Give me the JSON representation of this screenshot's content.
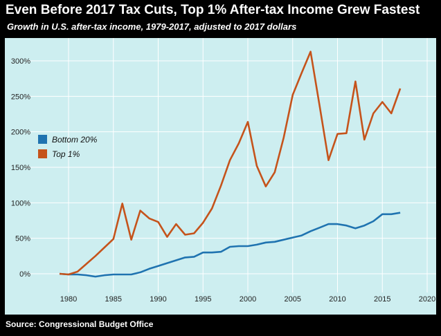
{
  "title": "Even Before 2017 Tax Cuts, Top 1% After-tax Income Grew Fastest",
  "subtitle": "Growth in U.S. after-tax income, 1979-2017, adjusted to 2017 dollars",
  "source": "Source: Congressional Budget Office",
  "colors": {
    "background": "#cdeef0",
    "grid": "#ffffff",
    "bottom20": "#1f73b0",
    "top1": "#c5531b"
  },
  "chart_data": {
    "type": "line",
    "title": "Even Before 2017 Tax Cuts, Top 1% After-tax Income Grew Fastest",
    "subtitle": "Growth in U.S. after-tax income, 1979-2017, adjusted to 2017 dollars",
    "xlabel": "",
    "ylabel": "",
    "xlim": [
      1975,
      2020
    ],
    "ylim": [
      -5,
      330
    ],
    "x_ticks": [
      1980,
      1985,
      1990,
      1995,
      2000,
      2005,
      2010,
      2015,
      2020
    ],
    "y_ticks": [
      0,
      50,
      100,
      150,
      200,
      250,
      300
    ],
    "y_tick_labels": [
      "0%",
      "50%",
      "100%",
      "150%",
      "200%",
      "250%",
      "300%"
    ],
    "grid": true,
    "legend_position": "left",
    "x": [
      1979,
      1980,
      1981,
      1982,
      1983,
      1984,
      1985,
      1986,
      1987,
      1988,
      1989,
      1990,
      1991,
      1992,
      1993,
      1994,
      1995,
      1996,
      1997,
      1998,
      1999,
      2000,
      2001,
      2002,
      2003,
      2004,
      2005,
      2006,
      2007,
      2008,
      2009,
      2010,
      2011,
      2012,
      2013,
      2014,
      2015,
      2016,
      2017
    ],
    "series": [
      {
        "name": "Bottom 20%",
        "color": "#1f73b0",
        "values": [
          0,
          -1,
          -1,
          -2,
          -4,
          -2,
          -1,
          -1,
          -1,
          2,
          7,
          11,
          15,
          19,
          23,
          24,
          30,
          30,
          31,
          38,
          39,
          39,
          41,
          44,
          45,
          48,
          51,
          54,
          60,
          65,
          70,
          70,
          68,
          64,
          68,
          74,
          84,
          84,
          86
        ]
      },
      {
        "name": "Top 1%",
        "color": "#c5531b",
        "values": [
          0,
          -1,
          3,
          14,
          25,
          37,
          49,
          99,
          48,
          89,
          78,
          73,
          52,
          70,
          55,
          57,
          72,
          92,
          124,
          160,
          184,
          214,
          152,
          123,
          143,
          192,
          252,
          283,
          313,
          237,
          160,
          197,
          198,
          271,
          189,
          226,
          242,
          226,
          261
        ]
      }
    ]
  }
}
